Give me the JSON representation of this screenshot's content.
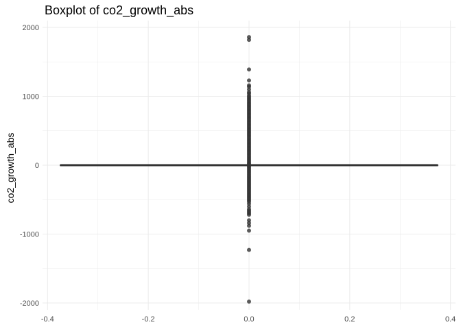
{
  "chart_data": {
    "type": "boxplot",
    "title": "Boxplot of co2_growth_abs",
    "xlabel": "",
    "ylabel": "co2_growth_abs",
    "xlim": [
      -0.4,
      0.4
    ],
    "ylim": [
      -2000,
      2000
    ],
    "x_ticks": [
      -0.4,
      -0.2,
      0.0,
      0.2,
      0.4
    ],
    "x_tick_labels": [
      "-0.4",
      "-0.2",
      "0.0",
      "0.2",
      "0.4"
    ],
    "y_ticks": [
      -2000,
      -1000,
      0,
      1000,
      2000
    ],
    "y_tick_labels": [
      "-2000",
      "-1000",
      "0",
      "1000",
      "2000"
    ],
    "grid": true,
    "box": {
      "x_center": 0.0,
      "x_range": [
        -0.375,
        0.375
      ],
      "q1": -3,
      "median": 0,
      "q3": 3,
      "whisker_low": -5,
      "whisker_high": 5
    },
    "outliers": [
      1860,
      1820,
      1390,
      1230,
      1160,
      1140,
      1100,
      1060,
      1040,
      1010,
      990,
      970,
      950,
      930,
      910,
      890,
      870,
      850,
      830,
      810,
      790,
      770,
      750,
      730,
      710,
      690,
      670,
      650,
      630,
      610,
      590,
      570,
      550,
      530,
      510,
      490,
      470,
      450,
      430,
      410,
      390,
      370,
      350,
      330,
      310,
      290,
      270,
      250,
      230,
      210,
      190,
      170,
      150,
      130,
      110,
      90,
      70,
      50,
      30,
      15,
      -15,
      -30,
      -50,
      -70,
      -90,
      -110,
      -130,
      -150,
      -170,
      -190,
      -210,
      -230,
      -250,
      -270,
      -290,
      -310,
      -330,
      -350,
      -370,
      -390,
      -410,
      -430,
      -450,
      -470,
      -490,
      -510,
      -530,
      -560,
      -600,
      -640,
      -660,
      -680,
      -700,
      -720,
      -800,
      -840,
      -880,
      -950,
      -1230,
      -1980
    ],
    "colors": {
      "box_line": "#333333",
      "outlier": "#333333",
      "grid": "#ebebeb",
      "background": "#ffffff"
    }
  }
}
